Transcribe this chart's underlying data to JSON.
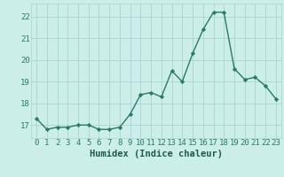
{
  "x": [
    0,
    1,
    2,
    3,
    4,
    5,
    6,
    7,
    8,
    9,
    10,
    11,
    12,
    13,
    14,
    15,
    16,
    17,
    18,
    19,
    20,
    21,
    22,
    23
  ],
  "y": [
    17.3,
    16.8,
    16.9,
    16.9,
    17.0,
    17.0,
    16.8,
    16.8,
    16.9,
    17.5,
    18.4,
    18.5,
    18.3,
    19.5,
    19.0,
    20.3,
    21.4,
    22.2,
    22.2,
    19.6,
    19.1,
    19.2,
    18.8,
    18.2
  ],
  "xlabel": "Humidex (Indice chaleur)",
  "xlim": [
    -0.5,
    23.5
  ],
  "ylim": [
    16.4,
    22.6
  ],
  "yticks": [
    17,
    18,
    19,
    20,
    21,
    22
  ],
  "xticks": [
    0,
    1,
    2,
    3,
    4,
    5,
    6,
    7,
    8,
    9,
    10,
    11,
    12,
    13,
    14,
    15,
    16,
    17,
    18,
    19,
    20,
    21,
    22,
    23
  ],
  "line_color": "#2a7a65",
  "marker_color": "#2a7a65",
  "bg_color": "#cceee8",
  "grid_color": "#aad4ce",
  "tick_color": "#2a7a65",
  "xlabel_color": "#1a5a50",
  "xlabel_fontsize": 7.5,
  "tick_fontsize": 6.5,
  "linewidth": 1.0,
  "markersize": 2.2
}
